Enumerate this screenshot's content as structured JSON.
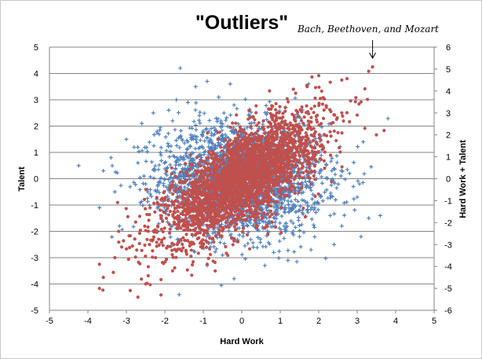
{
  "chart_data": {
    "type": "scatter",
    "title": "\"Outliers\"",
    "xlabel": "Hard Work",
    "ylabel": "Talent",
    "y2label": "Hard Work + Talent",
    "xlim": [
      -5,
      5
    ],
    "ylim": [
      -5,
      5
    ],
    "y2lim": [
      -6,
      6
    ],
    "x_ticks": [
      "-5",
      "-4",
      "-3",
      "-2",
      "-1",
      "0",
      "1",
      "2",
      "3",
      "4",
      "5"
    ],
    "y_ticks": [
      "-5",
      "-4",
      "-3",
      "-2",
      "-1",
      "0",
      "1",
      "2",
      "3",
      "4",
      "5"
    ],
    "y2_ticks": [
      "-6",
      "-5",
      "-4",
      "-3",
      "-2",
      "-1",
      "0",
      "1",
      "2",
      "3",
      "4",
      "5",
      "6"
    ],
    "grid": "horizontal",
    "series": [
      {
        "name": "",
        "axis": "left",
        "color": "#4f81bd",
        "marker": "plus",
        "points": [
          [
            -1.6,
            4.2
          ],
          [
            -0.9,
            3.7
          ],
          [
            -1.2,
            3.5
          ],
          [
            -0.3,
            3.6
          ],
          [
            -1.7,
            3.0
          ],
          [
            -0.6,
            3.1
          ],
          [
            -2.3,
            2.5
          ],
          [
            -1.9,
            2.6
          ],
          [
            -1.4,
            2.9
          ],
          [
            -0.2,
            2.8
          ],
          [
            -2.6,
            2.1
          ],
          [
            -3.0,
            1.5
          ],
          [
            -3.4,
            0.8
          ],
          [
            -3.6,
            0.3
          ],
          [
            -3.7,
            -1.1
          ],
          [
            -3.3,
            -0.5
          ],
          [
            -2.8,
            1.2
          ],
          [
            -2.2,
            1.8
          ],
          [
            1.9,
            -0.9
          ],
          [
            2.3,
            -1.4
          ],
          [
            2.6,
            -1.8
          ],
          [
            3.0,
            -0.7
          ],
          [
            3.3,
            -1.5
          ],
          [
            3.6,
            -1.4
          ],
          [
            3.1,
            -2.2
          ],
          [
            2.4,
            -2.5
          ],
          [
            1.8,
            -2.7
          ],
          [
            1.2,
            -3.1
          ],
          [
            0.6,
            -3.3
          ],
          [
            -0.2,
            -3.8
          ],
          [
            -0.9,
            -3.3
          ],
          [
            -0.5,
            -2.9
          ],
          [
            0.3,
            -2.6
          ],
          [
            1.5,
            -2.2
          ],
          [
            2.8,
            0.2
          ],
          [
            2.9,
            -0.3
          ],
          [
            -2.7,
            0.6
          ],
          [
            -2.5,
            -0.2
          ],
          [
            -1.8,
            2.2
          ],
          [
            -1.1,
            2.4
          ],
          [
            0.5,
            1.9
          ],
          [
            0.2,
            2.4
          ],
          [
            1.1,
            -1.8
          ],
          [
            1.7,
            -1.2
          ],
          [
            -0.5,
            2.0
          ],
          [
            -2.1,
            0.9
          ]
        ],
        "cloud": {
          "rho": 0.0,
          "sigma_x": 1.05,
          "sigma_y": 1.05,
          "count": 2600
        }
      },
      {
        "name": "",
        "axis": "right",
        "color": "#c0504d",
        "marker": "circle",
        "points": [
          [
            3.4,
            5.1
          ],
          [
            3.3,
            4.9
          ],
          [
            3.2,
            4.1
          ],
          [
            3.1,
            3.5
          ],
          [
            2.6,
            4.5
          ],
          [
            2.3,
            4.4
          ],
          [
            2.0,
            4.7
          ],
          [
            1.7,
            4.2
          ],
          [
            1.4,
            3.9
          ],
          [
            0.8,
            3.3
          ],
          [
            3.0,
            2.9
          ],
          [
            3.2,
            2.3
          ],
          [
            3.5,
            2.0
          ],
          [
            3.7,
            2.2
          ],
          [
            2.8,
            2.6
          ],
          [
            -3.7,
            -5.0
          ],
          [
            -3.6,
            -4.5
          ],
          [
            -3.7,
            -3.9
          ],
          [
            -2.9,
            -5.1
          ],
          [
            -2.7,
            -5.4
          ],
          [
            -2.5,
            -4.8
          ],
          [
            -2.1,
            -4.6
          ],
          [
            -2.1,
            -5.3
          ],
          [
            -1.8,
            -4.2
          ],
          [
            -1.3,
            -4.4
          ],
          [
            -0.9,
            -3.9
          ],
          [
            -3.3,
            -3.6
          ],
          [
            -3.0,
            -3.2
          ],
          [
            -2.4,
            -3.0
          ],
          [
            -1.7,
            -3.3
          ],
          [
            -3.2,
            -2.4
          ],
          [
            -0.4,
            -3.4
          ],
          [
            2.6,
            3.0
          ],
          [
            2.1,
            3.4
          ],
          [
            -2.9,
            -2.6
          ],
          [
            1.9,
            1.4
          ],
          [
            -2.0,
            -1.2
          ],
          [
            0.3,
            2.8
          ],
          [
            2.5,
            2.1
          ]
        ],
        "cloud": {
          "rho": 0.71,
          "sigma_x": 1.0,
          "sigma_y": 1.41,
          "count": 2900
        }
      }
    ],
    "annotations": [
      {
        "text": "Bach, Beethoven, and Mozart",
        "target": [
          3.4,
          5.1
        ],
        "axis": "right",
        "arrow": true
      }
    ]
  }
}
